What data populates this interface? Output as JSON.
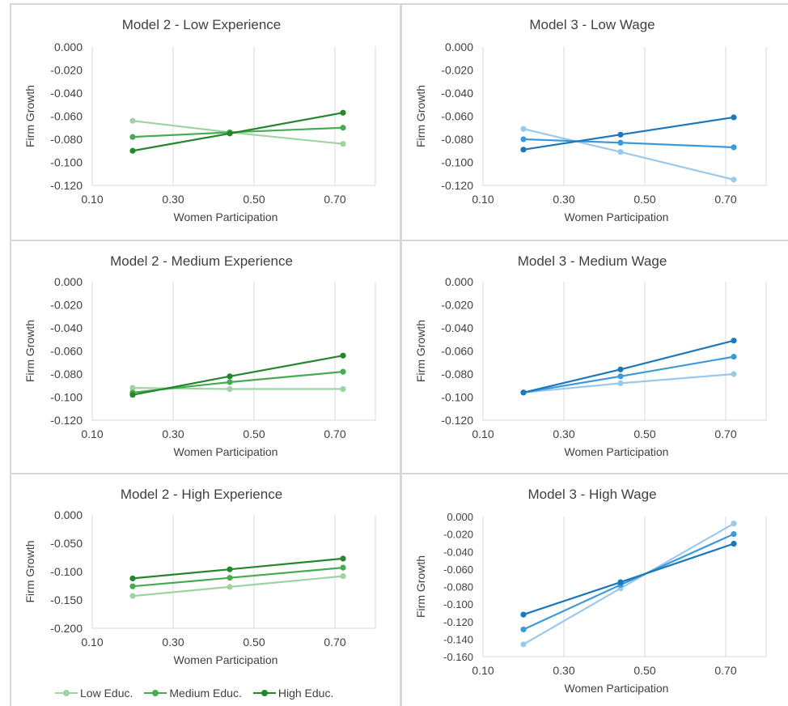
{
  "colors": {
    "green_low": "#9fd3a4",
    "green_medium": "#45ac4f",
    "green_high": "#26862e",
    "blue_low": "#9bc9ec",
    "blue_medium": "#3d9ad9",
    "blue_high": "#1c78bd",
    "grid": "#d9d9d9",
    "text": "#404040"
  },
  "legend": {
    "items": [
      {
        "label": "Low Educ.",
        "color": "#9fd3a4"
      },
      {
        "label": "Medium Educ.",
        "color": "#45ac4f"
      },
      {
        "label": "High Educ.",
        "color": "#26862e"
      }
    ]
  },
  "chart_data": [
    {
      "type": "line",
      "title": "Model 2 - Low Experience",
      "xlabel": "Women Participation",
      "ylabel": "Firm Growth",
      "xlim": [
        0.1,
        0.8
      ],
      "xticks": [
        "0.10",
        "0.30",
        "0.50",
        "0.70"
      ],
      "xtick_values": [
        0.1,
        0.3,
        0.5,
        0.7
      ],
      "ylim": [
        -0.12,
        0.0
      ],
      "yticks": [
        "0.000",
        "-0.020",
        "-0.040",
        "-0.060",
        "-0.080",
        "-0.100",
        "-0.120"
      ],
      "ytick_values": [
        0,
        -0.02,
        -0.04,
        -0.06,
        -0.08,
        -0.1,
        -0.12
      ],
      "x": [
        0.2,
        0.44,
        0.72
      ],
      "grid": true,
      "series": [
        {
          "name": "Low Educ.",
          "values": [
            -0.064,
            -0.074,
            -0.084
          ],
          "color": "#9fd3a4"
        },
        {
          "name": "Medium Educ.",
          "values": [
            -0.078,
            -0.074,
            -0.07
          ],
          "color": "#45ac4f"
        },
        {
          "name": "High Educ.",
          "values": [
            -0.09,
            -0.075,
            -0.057
          ],
          "color": "#26862e"
        }
      ]
    },
    {
      "type": "line",
      "title": "Model 3 - Low Wage",
      "xlabel": "Women Participation",
      "ylabel": "Firm Growth",
      "xlim": [
        0.1,
        0.8
      ],
      "xticks": [
        "0.10",
        "0.30",
        "0.50",
        "0.70"
      ],
      "xtick_values": [
        0.1,
        0.3,
        0.5,
        0.7
      ],
      "ylim": [
        -0.12,
        0.0
      ],
      "yticks": [
        "0.000",
        "-0.020",
        "-0.040",
        "-0.060",
        "-0.080",
        "-0.100",
        "-0.120"
      ],
      "ytick_values": [
        0,
        -0.02,
        -0.04,
        -0.06,
        -0.08,
        -0.1,
        -0.12
      ],
      "x": [
        0.2,
        0.44,
        0.72
      ],
      "grid": true,
      "series": [
        {
          "values": [
            -0.071,
            -0.091,
            -0.115
          ],
          "color": "#9bc9ec"
        },
        {
          "values": [
            -0.08,
            -0.083,
            -0.087
          ],
          "color": "#3d9ad9"
        },
        {
          "values": [
            -0.089,
            -0.076,
            -0.061
          ],
          "color": "#1c78bd"
        }
      ]
    },
    {
      "type": "line",
      "title": "Model 2 - Medium Experience",
      "xlabel": "Women Participation",
      "ylabel": "Firm Growth",
      "xlim": [
        0.1,
        0.8
      ],
      "xticks": [
        "0.10",
        "0.30",
        "0.50",
        "0.70"
      ],
      "xtick_values": [
        0.1,
        0.3,
        0.5,
        0.7
      ],
      "ylim": [
        -0.12,
        0.0
      ],
      "yticks": [
        "0.000",
        "-0.020",
        "-0.040",
        "-0.060",
        "-0.080",
        "-0.100",
        "-0.120"
      ],
      "ytick_values": [
        0,
        -0.02,
        -0.04,
        -0.06,
        -0.08,
        -0.1,
        -0.12
      ],
      "x": [
        0.2,
        0.44,
        0.72
      ],
      "grid": true,
      "series": [
        {
          "name": "Low Educ.",
          "values": [
            -0.092,
            -0.093,
            -0.093
          ],
          "color": "#9fd3a4"
        },
        {
          "name": "Medium Educ.",
          "values": [
            -0.096,
            -0.087,
            -0.078
          ],
          "color": "#45ac4f"
        },
        {
          "name": "High Educ.",
          "values": [
            -0.098,
            -0.082,
            -0.064
          ],
          "color": "#26862e"
        }
      ]
    },
    {
      "type": "line",
      "title": "Model 3 - Medium Wage",
      "xlabel": "Women Participation",
      "ylabel": "Firm Growth",
      "xlim": [
        0.1,
        0.8
      ],
      "xticks": [
        "0.10",
        "0.30",
        "0.50",
        "0.70"
      ],
      "xtick_values": [
        0.1,
        0.3,
        0.5,
        0.7
      ],
      "ylim": [
        -0.12,
        0.0
      ],
      "yticks": [
        "0.000",
        "-0.020",
        "-0.040",
        "-0.060",
        "-0.080",
        "-0.100",
        "-0.120"
      ],
      "ytick_values": [
        0,
        -0.02,
        -0.04,
        -0.06,
        -0.08,
        -0.1,
        -0.12
      ],
      "x": [
        0.2,
        0.44,
        0.72
      ],
      "grid": true,
      "series": [
        {
          "values": [
            -0.096,
            -0.088,
            -0.08
          ],
          "color": "#9bc9ec"
        },
        {
          "values": [
            -0.096,
            -0.082,
            -0.065
          ],
          "color": "#3d9ad9"
        },
        {
          "values": [
            -0.096,
            -0.076,
            -0.051
          ],
          "color": "#1c78bd"
        }
      ]
    },
    {
      "type": "line",
      "title": "Model 2 - High Experience",
      "xlabel": "Women Participation",
      "ylabel": "Firm Growth",
      "xlim": [
        0.1,
        0.8
      ],
      "xticks": [
        "0.10",
        "0.30",
        "0.50",
        "0.70"
      ],
      "xtick_values": [
        0.1,
        0.3,
        0.5,
        0.7
      ],
      "ylim": [
        -0.2,
        0.0
      ],
      "yticks": [
        "0.000",
        "-0.050",
        "-0.100",
        "-0.150",
        "-0.200"
      ],
      "ytick_values": [
        0,
        -0.05,
        -0.1,
        -0.15,
        -0.2
      ],
      "x": [
        0.2,
        0.44,
        0.72
      ],
      "grid": true,
      "series": [
        {
          "name": "Low Educ.",
          "values": [
            -0.143,
            -0.127,
            -0.108
          ],
          "color": "#9fd3a4"
        },
        {
          "name": "Medium Educ.",
          "values": [
            -0.126,
            -0.111,
            -0.093
          ],
          "color": "#45ac4f"
        },
        {
          "name": "High Educ.",
          "values": [
            -0.112,
            -0.096,
            -0.077
          ],
          "color": "#26862e"
        }
      ]
    },
    {
      "type": "line",
      "title": "Model 3 - High Wage",
      "xlabel": "Women Participation",
      "ylabel": "Firm Growth",
      "xlim": [
        0.1,
        0.8
      ],
      "xticks": [
        "0.10",
        "0.30",
        "0.50",
        "0.70"
      ],
      "xtick_values": [
        0.1,
        0.3,
        0.5,
        0.7
      ],
      "ylim": [
        -0.16,
        0.0
      ],
      "yticks": [
        "0.000",
        "-0.020",
        "-0.040",
        "-0.060",
        "-0.080",
        "-0.100",
        "-0.120",
        "-0.140",
        "-0.160"
      ],
      "ytick_values": [
        0,
        -0.02,
        -0.04,
        -0.06,
        -0.08,
        -0.1,
        -0.12,
        -0.14,
        -0.16
      ],
      "x": [
        0.2,
        0.44,
        0.72
      ],
      "grid": true,
      "series": [
        {
          "values": [
            -0.146,
            -0.082,
            -0.008
          ],
          "color": "#9bc9ec"
        },
        {
          "values": [
            -0.129,
            -0.078,
            -0.02
          ],
          "color": "#3d9ad9"
        },
        {
          "values": [
            -0.112,
            -0.075,
            -0.031
          ],
          "color": "#1c78bd"
        }
      ]
    }
  ]
}
